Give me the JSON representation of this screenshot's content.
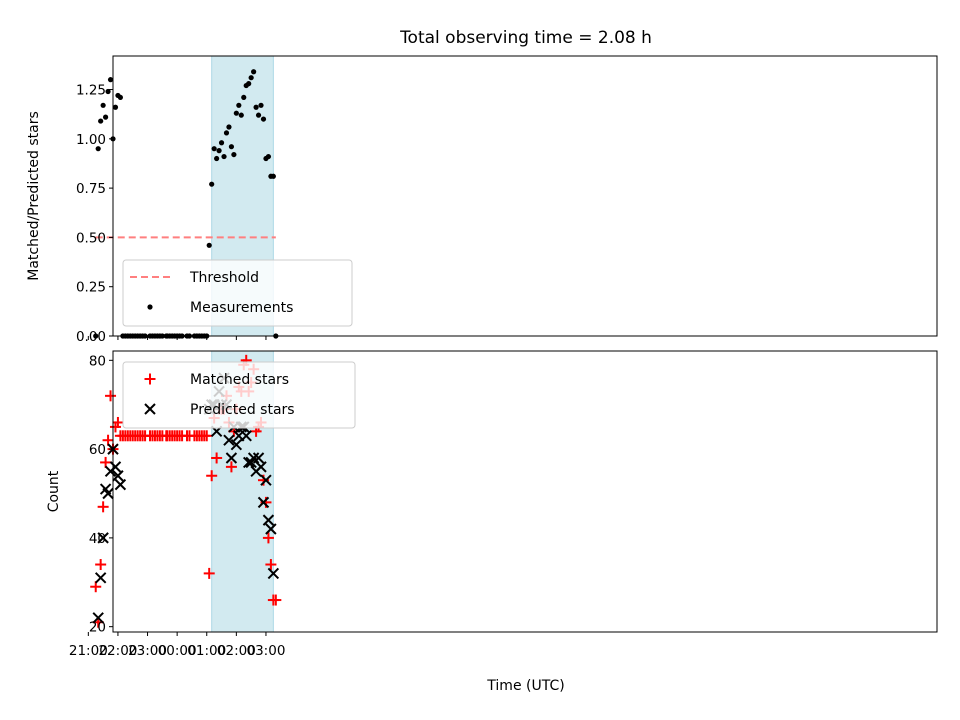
{
  "chart_data": {
    "title": "Total observing time = 2.08 h",
    "shared_xlabel": "Time (UTC)",
    "x_tick_labels": [
      "21:00",
      "22:00",
      "23:00",
      "00:00",
      "01:00",
      "02:00",
      "03:00"
    ],
    "highlight_span": {
      "start": "01:10",
      "end": "03:15",
      "color": "#d2eaf0"
    },
    "panels": [
      {
        "type": "scatter",
        "ylabel": "Matched/Predicted stars",
        "ylim": [
          0,
          1.42
        ],
        "yticks": [
          "0.00",
          "0.25",
          "0.50",
          "0.75",
          "1.00",
          "1.25"
        ],
        "threshold": {
          "name": "Threshold",
          "y": 0.5,
          "x_from": "21:15",
          "x_to": "03:20",
          "color": "#ff7f7f"
        },
        "series": [
          {
            "name": "Measurements",
            "color": "#000000",
            "points": [
              [
                "21:15",
                0.0
              ],
              [
                "21:20",
                0.95
              ],
              [
                "21:25",
                1.09
              ],
              [
                "21:30",
                1.17
              ],
              [
                "21:35",
                1.11
              ],
              [
                "21:40",
                1.24
              ],
              [
                "21:45",
                1.3
              ],
              [
                "21:50",
                1.0
              ],
              [
                "21:55",
                1.16
              ],
              [
                "22:00",
                1.22
              ],
              [
                "22:05",
                1.21
              ],
              [
                "22:10",
                0.0
              ],
              [
                "22:15",
                0.0
              ],
              [
                "22:20",
                0.0
              ],
              [
                "22:25",
                0.0
              ],
              [
                "22:30",
                0.0
              ],
              [
                "22:35",
                0.0
              ],
              [
                "22:40",
                0.0
              ],
              [
                "22:45",
                0.0
              ],
              [
                "22:50",
                0.0
              ],
              [
                "22:55",
                0.0
              ],
              [
                "23:05",
                0.0
              ],
              [
                "23:10",
                0.0
              ],
              [
                "23:15",
                0.0
              ],
              [
                "23:20",
                0.0
              ],
              [
                "23:25",
                0.0
              ],
              [
                "23:30",
                0.0
              ],
              [
                "23:38",
                0.0
              ],
              [
                "23:40",
                0.0
              ],
              [
                "23:45",
                0.0
              ],
              [
                "23:50",
                0.0
              ],
              [
                "23:55",
                0.0
              ],
              [
                "00:00",
                0.0
              ],
              [
                "00:05",
                0.0
              ],
              [
                "00:10",
                0.0
              ],
              [
                "00:20",
                0.0
              ],
              [
                "00:25",
                0.0
              ],
              [
                "00:35",
                0.0
              ],
              [
                "00:40",
                0.0
              ],
              [
                "00:45",
                0.0
              ],
              [
                "00:50",
                0.0
              ],
              [
                "00:55",
                0.0
              ],
              [
                "01:00",
                0.0
              ],
              [
                "01:05",
                0.46
              ],
              [
                "01:10",
                0.77
              ],
              [
                "01:15",
                0.95
              ],
              [
                "01:20",
                0.9
              ],
              [
                "01:25",
                0.94
              ],
              [
                "01:30",
                0.98
              ],
              [
                "01:35",
                0.91
              ],
              [
                "01:40",
                1.03
              ],
              [
                "01:45",
                1.06
              ],
              [
                "01:50",
                0.96
              ],
              [
                "01:55",
                0.92
              ],
              [
                "02:00",
                1.13
              ],
              [
                "02:05",
                1.17
              ],
              [
                "02:10",
                1.12
              ],
              [
                "02:15",
                1.21
              ],
              [
                "02:20",
                1.27
              ],
              [
                "02:25",
                1.28
              ],
              [
                "02:30",
                1.31
              ],
              [
                "02:35",
                1.34
              ],
              [
                "02:40",
                1.16
              ],
              [
                "02:45",
                1.12
              ],
              [
                "02:50",
                1.17
              ],
              [
                "02:55",
                1.1
              ],
              [
                "03:00",
                0.9
              ],
              [
                "03:05",
                0.91
              ],
              [
                "03:10",
                0.81
              ],
              [
                "03:15",
                0.81
              ],
              [
                "03:20",
                0.0
              ]
            ]
          }
        ],
        "legend": {
          "position": "lower left",
          "entries": [
            "Threshold",
            "Measurements"
          ]
        }
      },
      {
        "type": "scatter",
        "ylabel": "Count",
        "ylim": [
          18.8,
          82.1
        ],
        "yticks": [
          "20",
          "40",
          "60",
          "80"
        ],
        "series": [
          {
            "name": "Matched stars",
            "marker": "+",
            "color": "#ff0000",
            "points": [
              [
                "21:15",
                29
              ],
              [
                "21:20",
                21
              ],
              [
                "21:25",
                34
              ],
              [
                "21:30",
                47
              ],
              [
                "21:35",
                57
              ],
              [
                "21:40",
                62
              ],
              [
                "21:45",
                72
              ],
              [
                "21:50",
                60
              ],
              [
                "21:55",
                65
              ],
              [
                "22:00",
                66
              ],
              [
                "22:05",
                63
              ],
              [
                "22:10",
                63
              ],
              [
                "22:15",
                63
              ],
              [
                "22:20",
                63
              ],
              [
                "22:25",
                63
              ],
              [
                "22:30",
                63
              ],
              [
                "22:35",
                63
              ],
              [
                "22:40",
                63
              ],
              [
                "22:45",
                63
              ],
              [
                "22:50",
                63
              ],
              [
                "22:55",
                63
              ],
              [
                "23:05",
                63
              ],
              [
                "23:10",
                63
              ],
              [
                "23:15",
                63
              ],
              [
                "23:20",
                63
              ],
              [
                "23:25",
                63
              ],
              [
                "23:30",
                63
              ],
              [
                "23:38",
                63
              ],
              [
                "23:40",
                63
              ],
              [
                "23:45",
                63
              ],
              [
                "23:50",
                63
              ],
              [
                "23:55",
                63
              ],
              [
                "00:00",
                63
              ],
              [
                "00:05",
                63
              ],
              [
                "00:10",
                63
              ],
              [
                "00:20",
                63
              ],
              [
                "00:25",
                63
              ],
              [
                "00:35",
                63
              ],
              [
                "00:40",
                63
              ],
              [
                "00:45",
                63
              ],
              [
                "00:50",
                63
              ],
              [
                "00:55",
                63
              ],
              [
                "01:00",
                63
              ],
              [
                "01:05",
                32
              ],
              [
                "01:10",
                54
              ],
              [
                "01:15",
                67
              ],
              [
                "01:20",
                58
              ],
              [
                "01:25",
                69
              ],
              [
                "01:30",
                69
              ],
              [
                "01:35",
                69
              ],
              [
                "01:40",
                72
              ],
              [
                "01:45",
                66
              ],
              [
                "01:50",
                56
              ],
              [
                "01:55",
                64
              ],
              [
                "02:00",
                69
              ],
              [
                "02:05",
                74
              ],
              [
                "02:10",
                73
              ],
              [
                "02:15",
                79
              ],
              [
                "02:20",
                80
              ],
              [
                "02:25",
                73
              ],
              [
                "02:30",
                75
              ],
              [
                "02:35",
                78
              ],
              [
                "02:40",
                64
              ],
              [
                "02:45",
                65
              ],
              [
                "02:50",
                66
              ],
              [
                "02:55",
                53
              ],
              [
                "03:00",
                48
              ],
              [
                "03:05",
                40
              ],
              [
                "03:10",
                34
              ],
              [
                "03:15",
                26
              ],
              [
                "03:20",
                26
              ]
            ]
          },
          {
            "name": "Predicted stars",
            "marker": "x",
            "color": "#000000",
            "points": [
              [
                "21:20",
                22
              ],
              [
                "21:25",
                31
              ],
              [
                "21:30",
                40
              ],
              [
                "21:35",
                51
              ],
              [
                "21:40",
                50
              ],
              [
                "21:45",
                55
              ],
              [
                "21:50",
                60
              ],
              [
                "21:55",
                56
              ],
              [
                "22:00",
                54
              ],
              [
                "22:05",
                52
              ],
              [
                "01:05",
                69
              ],
              [
                "01:10",
                70
              ],
              [
                "01:15",
                70
              ],
              [
                "01:20",
                64
              ],
              [
                "01:25",
                73
              ],
              [
                "01:30",
                70
              ],
              [
                "01:35",
                76
              ],
              [
                "01:40",
                70
              ],
              [
                "01:45",
                62
              ],
              [
                "01:50",
                58
              ],
              [
                "01:55",
                65
              ],
              [
                "02:00",
                61
              ],
              [
                "02:05",
                63
              ],
              [
                "02:10",
                65
              ],
              [
                "02:15",
                65
              ],
              [
                "02:20",
                63
              ],
              [
                "02:25",
                57
              ],
              [
                "02:30",
                57
              ],
              [
                "02:35",
                58
              ],
              [
                "02:40",
                55
              ],
              [
                "02:45",
                58
              ],
              [
                "02:50",
                56
              ],
              [
                "02:55",
                48
              ],
              [
                "03:00",
                53
              ],
              [
                "03:05",
                44
              ],
              [
                "03:10",
                42
              ],
              [
                "03:15",
                32
              ]
            ]
          }
        ],
        "legend": {
          "position": "upper left",
          "entries": [
            "Matched stars",
            "Predicted stars"
          ]
        }
      }
    ]
  }
}
